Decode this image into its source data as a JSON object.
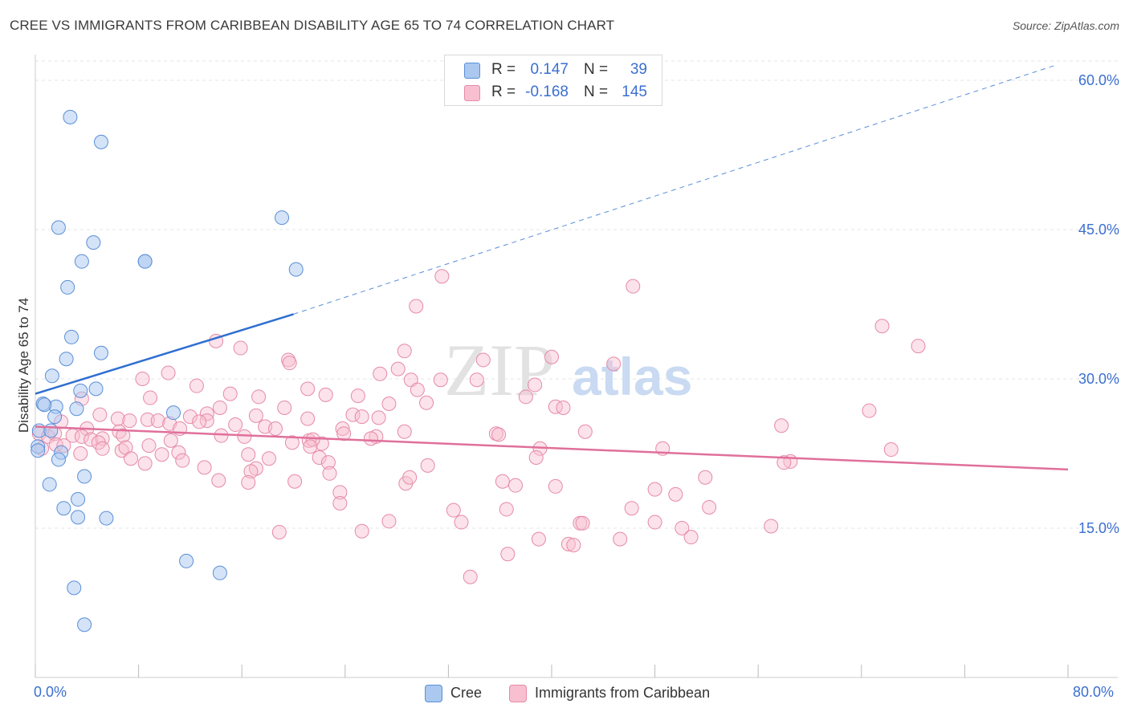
{
  "title": "CREE VS IMMIGRANTS FROM CARIBBEAN DISABILITY AGE 65 TO 74 CORRELATION CHART",
  "source": "Source: ZipAtlas.com",
  "watermark": {
    "zip": "ZIP",
    "atlas": "atlas"
  },
  "legend_top": {
    "rows": [
      {
        "r_label": "R =",
        "r_value": "0.147",
        "n_label": "N =",
        "n_value": "39",
        "color": "#aac8f0",
        "stroke": "#5b8fd8"
      },
      {
        "r_label": "R =",
        "r_value": "-0.168",
        "n_label": "N =",
        "n_value": "145",
        "color": "#f8bfd0",
        "stroke": "#e58aa8"
      }
    ]
  },
  "legend_bottom": [
    {
      "label": "Cree",
      "color": "#aac8f0",
      "stroke": "#5b8fd8"
    },
    {
      "label": "Immigrants from Caribbean",
      "color": "#f8bfd0",
      "stroke": "#e58aa8"
    }
  ],
  "chart_data": {
    "type": "scatter",
    "title": "CREE VS IMMIGRANTS FROM CARIBBEAN DISABILITY AGE 65 TO 74 CORRELATION CHART",
    "xlabel": "",
    "ylabel": "Disability Age 65 to 74",
    "xlim": [
      0,
      80
    ],
    "ylim": [
      0,
      60
    ],
    "x_tick_labels": [
      "0.0%",
      "80.0%"
    ],
    "y_tick_labels": [
      "15.0%",
      "30.0%",
      "45.0%",
      "60.0%"
    ],
    "y_ticks": [
      15,
      30,
      45,
      60
    ],
    "grid": true,
    "legend_position": "top-center",
    "series": [
      {
        "name": "Cree",
        "color": "#5b8fd8",
        "fill": "#aac8f0",
        "trend": {
          "x": [
            0,
            20
          ],
          "y": [
            28.5,
            36.5
          ],
          "dashed_extension_to": [
            79,
            61.5
          ]
        },
        "points": [
          [
            2.7,
            56.3
          ],
          [
            5.1,
            53.8
          ],
          [
            19.1,
            46.2
          ],
          [
            1.8,
            45.2
          ],
          [
            4.5,
            43.7
          ],
          [
            3.6,
            41.8
          ],
          [
            8.5,
            41.8
          ],
          [
            8.5,
            41.8
          ],
          [
            20.2,
            41.0
          ],
          [
            2.5,
            39.2
          ],
          [
            2.8,
            34.2
          ],
          [
            2.4,
            32.0
          ],
          [
            5.1,
            32.6
          ],
          [
            1.3,
            30.3
          ],
          [
            3.5,
            28.8
          ],
          [
            4.7,
            29.0
          ],
          [
            0.6,
            27.5
          ],
          [
            1.6,
            27.2
          ],
          [
            0.7,
            27.4
          ],
          [
            3.2,
            27.0
          ],
          [
            10.7,
            26.6
          ],
          [
            1.5,
            26.2
          ],
          [
            0.3,
            24.8
          ],
          [
            1.2,
            24.8
          ],
          [
            0.2,
            23.2
          ],
          [
            0.2,
            22.8
          ],
          [
            2.0,
            22.6
          ],
          [
            1.8,
            21.9
          ],
          [
            3.8,
            20.2
          ],
          [
            1.1,
            19.4
          ],
          [
            3.3,
            17.9
          ],
          [
            2.2,
            17.0
          ],
          [
            3.3,
            16.1
          ],
          [
            5.5,
            16.0
          ],
          [
            11.7,
            11.7
          ],
          [
            14.3,
            10.5
          ],
          [
            3.0,
            9.0
          ],
          [
            3.8,
            5.3
          ]
        ]
      },
      {
        "name": "Immigrants from Caribbean",
        "color": "#e58aa8",
        "fill": "#f8bfd0",
        "trend": {
          "x": [
            0,
            80
          ],
          "y": [
            25.2,
            20.9
          ]
        },
        "points": [
          [
            31.5,
            40.3
          ],
          [
            46.3,
            39.3
          ],
          [
            29.5,
            37.3
          ],
          [
            65.6,
            35.3
          ],
          [
            68.4,
            33.3
          ],
          [
            14.0,
            33.8
          ],
          [
            15.9,
            33.1
          ],
          [
            28.6,
            32.8
          ],
          [
            19.6,
            31.9
          ],
          [
            34.7,
            31.9
          ],
          [
            40.0,
            32.2
          ],
          [
            44.8,
            31.5
          ],
          [
            28.1,
            31.0
          ],
          [
            19.7,
            31.6
          ],
          [
            26.7,
            30.5
          ],
          [
            29.1,
            29.9
          ],
          [
            31.4,
            29.9
          ],
          [
            34.2,
            29.9
          ],
          [
            8.3,
            30.0
          ],
          [
            10.3,
            30.6
          ],
          [
            12.5,
            29.3
          ],
          [
            21.1,
            29.0
          ],
          [
            29.6,
            28.9
          ],
          [
            38.7,
            29.4
          ],
          [
            15.1,
            28.5
          ],
          [
            22.5,
            28.4
          ],
          [
            25.0,
            28.3
          ],
          [
            17.3,
            28.2
          ],
          [
            30.3,
            27.6
          ],
          [
            27.4,
            27.5
          ],
          [
            38.0,
            28.2
          ],
          [
            3.6,
            28.0
          ],
          [
            8.9,
            28.1
          ],
          [
            19.3,
            27.1
          ],
          [
            14.3,
            27.1
          ],
          [
            24.6,
            26.4
          ],
          [
            13.3,
            26.5
          ],
          [
            12.0,
            26.2
          ],
          [
            17.1,
            26.3
          ],
          [
            21.1,
            26.0
          ],
          [
            25.3,
            26.2
          ],
          [
            26.6,
            26.1
          ],
          [
            13.3,
            25.8
          ],
          [
            40.3,
            27.2
          ],
          [
            40.9,
            27.1
          ],
          [
            64.6,
            26.8
          ],
          [
            2.0,
            25.7
          ],
          [
            5.0,
            26.4
          ],
          [
            6.4,
            26.0
          ],
          [
            7.3,
            25.8
          ],
          [
            8.7,
            25.9
          ],
          [
            9.5,
            25.8
          ],
          [
            12.7,
            25.7
          ],
          [
            10.4,
            25.5
          ],
          [
            15.5,
            25.4
          ],
          [
            17.8,
            25.2
          ],
          [
            18.6,
            25.0
          ],
          [
            11.2,
            25.0
          ],
          [
            23.8,
            25.0
          ],
          [
            23.9,
            24.5
          ],
          [
            28.6,
            24.7
          ],
          [
            35.7,
            24.5
          ],
          [
            42.6,
            24.7
          ],
          [
            57.8,
            25.3
          ],
          [
            4.0,
            25.0
          ],
          [
            6.5,
            24.7
          ],
          [
            0.3,
            24.5
          ],
          [
            1.0,
            24.2
          ],
          [
            1.5,
            24.5
          ],
          [
            2.9,
            24.3
          ],
          [
            3.6,
            24.2
          ],
          [
            4.3,
            23.9
          ],
          [
            5.2,
            24.0
          ],
          [
            6.8,
            24.3
          ],
          [
            10.5,
            23.8
          ],
          [
            14.4,
            24.3
          ],
          [
            16.2,
            24.2
          ],
          [
            19.9,
            23.6
          ],
          [
            21.2,
            23.8
          ],
          [
            22.2,
            23.5
          ],
          [
            21.5,
            23.9
          ],
          [
            26.4,
            24.2
          ],
          [
            26.0,
            24.0
          ],
          [
            35.9,
            24.4
          ],
          [
            1.6,
            23.4
          ],
          [
            2.2,
            23.3
          ],
          [
            4.9,
            23.6
          ],
          [
            8.8,
            23.3
          ],
          [
            5.2,
            23.0
          ],
          [
            6.7,
            22.8
          ],
          [
            7.0,
            23.1
          ],
          [
            21.3,
            23.2
          ],
          [
            39.1,
            23.0
          ],
          [
            48.6,
            23.0
          ],
          [
            66.3,
            22.9
          ],
          [
            0.5,
            23.0
          ],
          [
            11.1,
            22.6
          ],
          [
            9.8,
            22.4
          ],
          [
            18.1,
            22.0
          ],
          [
            3.5,
            22.5
          ],
          [
            7.4,
            22.0
          ],
          [
            16.5,
            22.4
          ],
          [
            22.0,
            22.1
          ],
          [
            38.8,
            22.1
          ],
          [
            30.4,
            21.3
          ],
          [
            11.4,
            21.8
          ],
          [
            8.5,
            21.5
          ],
          [
            13.1,
            21.1
          ],
          [
            17.1,
            21.0
          ],
          [
            22.7,
            21.6
          ],
          [
            16.7,
            20.7
          ],
          [
            22.8,
            20.5
          ],
          [
            58.5,
            21.7
          ],
          [
            58.0,
            21.6
          ],
          [
            14.2,
            19.8
          ],
          [
            20.1,
            19.7
          ],
          [
            28.7,
            19.5
          ],
          [
            29.0,
            20.1
          ],
          [
            36.2,
            19.7
          ],
          [
            51.9,
            20.1
          ],
          [
            16.5,
            19.6
          ],
          [
            37.2,
            19.3
          ],
          [
            40.3,
            19.2
          ],
          [
            23.6,
            18.6
          ],
          [
            48.0,
            18.9
          ],
          [
            49.6,
            18.4
          ],
          [
            23.6,
            17.5
          ],
          [
            36.5,
            16.9
          ],
          [
            32.4,
            16.8
          ],
          [
            46.2,
            17.0
          ],
          [
            18.9,
            14.6
          ],
          [
            25.3,
            14.7
          ],
          [
            27.4,
            15.7
          ],
          [
            33.0,
            15.6
          ],
          [
            42.2,
            15.5
          ],
          [
            42.4,
            15.5
          ],
          [
            48.0,
            15.6
          ],
          [
            52.2,
            17.1
          ],
          [
            50.1,
            15.0
          ],
          [
            57.0,
            15.2
          ],
          [
            41.3,
            13.4
          ],
          [
            41.7,
            13.3
          ],
          [
            39.0,
            13.9
          ],
          [
            45.3,
            13.9
          ],
          [
            50.8,
            14.1
          ],
          [
            36.6,
            12.4
          ],
          [
            33.7,
            10.1
          ]
        ]
      }
    ]
  }
}
